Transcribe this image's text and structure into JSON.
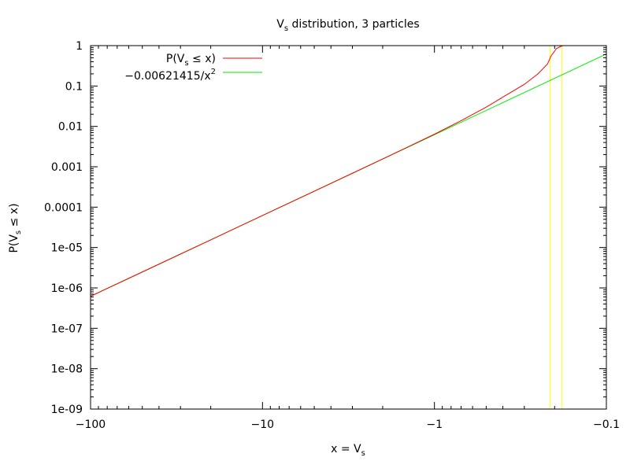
{
  "chart_data": {
    "type": "line",
    "title": {
      "pre": "V",
      "sub": "s",
      "post": " distribution, 3 particles"
    },
    "xlabel": {
      "pre": "x = V",
      "sub": "s",
      "post": ""
    },
    "ylabel": {
      "pre": "P(V",
      "sub": "s",
      "post": " ≤ x)"
    },
    "x_scale": "log-negative",
    "y_scale": "log",
    "xlim": [
      -100,
      -0.1
    ],
    "ylim": [
      1e-09,
      1
    ],
    "x_ticks": [
      {
        "value": -100,
        "label": "−100"
      },
      {
        "value": -10,
        "label": "−10"
      },
      {
        "value": -1,
        "label": "−1"
      },
      {
        "value": -0.1,
        "label": "−0.1"
      }
    ],
    "y_ticks": [
      {
        "value": 1,
        "label": "1"
      },
      {
        "value": 0.1,
        "label": "0.1"
      },
      {
        "value": 0.01,
        "label": "0.01"
      },
      {
        "value": 0.001,
        "label": "0.001"
      },
      {
        "value": 0.0001,
        "label": "0.0001"
      },
      {
        "value": 1e-05,
        "label": "1e-05"
      },
      {
        "value": 1e-06,
        "label": "1e-06"
      },
      {
        "value": 1e-07,
        "label": "1e-07"
      },
      {
        "value": 1e-08,
        "label": "1e-08"
      },
      {
        "value": 1e-09,
        "label": "1e-09"
      }
    ],
    "grid": false,
    "legend_position": "top-left",
    "series": [
      {
        "name": {
          "pre": "P(V",
          "sub": "s",
          "post": " ≤ x)",
          "sup": ""
        },
        "color": "#ff0000",
        "x": [
          -100,
          -50,
          -20,
          -10,
          -5,
          -3,
          -2,
          -1.5,
          -1,
          -0.7,
          -0.5,
          -0.4,
          -0.3,
          -0.25,
          -0.22,
          -0.21,
          -0.195,
          -0.18
        ],
        "y": [
          6.21e-07,
          2.48e-06,
          1.55e-05,
          6.21e-05,
          0.000248,
          0.000691,
          0.00156,
          0.0028,
          0.0064,
          0.0138,
          0.03,
          0.053,
          0.11,
          0.2,
          0.35,
          0.55,
          0.85,
          1.0
        ]
      },
      {
        "name": {
          "pre": "−0.00621415/x",
          "sub": "",
          "post": "",
          "sup": "2"
        },
        "color": "#00ee00",
        "x": [
          -100,
          -0.1
        ],
        "y": [
          6.21415e-07,
          0.621415
        ]
      }
    ],
    "vertical_markers": {
      "color": "#ffff00",
      "x": [
        -0.213,
        -0.181
      ]
    }
  }
}
